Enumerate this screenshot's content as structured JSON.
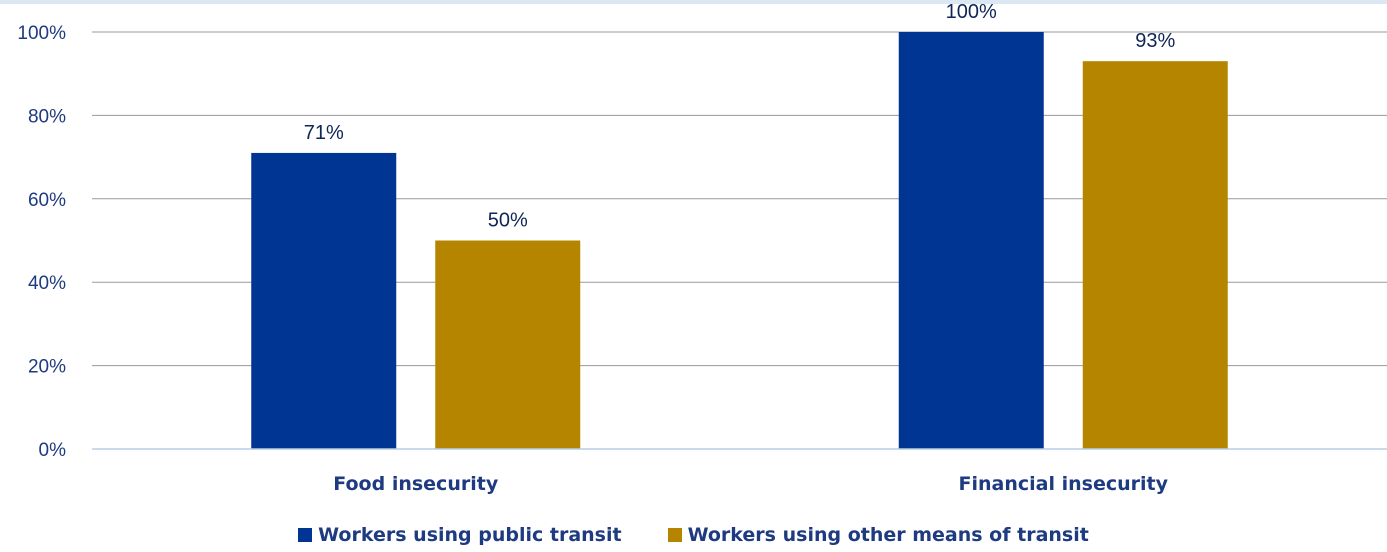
{
  "chart_data": {
    "type": "bar",
    "categories": [
      "Food insecurity",
      "Financial insecurity"
    ],
    "series": [
      {
        "name": "Workers using public transit",
        "values": [
          71,
          100
        ],
        "color": "#003594"
      },
      {
        "name": "Workers using other means of transit",
        "values": [
          50,
          93
        ],
        "color": "#b58500"
      }
    ],
    "data_labels": [
      [
        "71%",
        "100%"
      ],
      [
        "50%",
        "93%"
      ]
    ],
    "y_ticks": [
      0,
      20,
      40,
      60,
      80,
      100
    ],
    "y_tick_labels": [
      "0%",
      "20%",
      "40%",
      "60%",
      "80%",
      "100%"
    ],
    "ylim": [
      0,
      100
    ],
    "grid": true,
    "legend_position": "bottom",
    "colors": {
      "axis_text": "#1e3a80",
      "label_text": "#0f2557",
      "grid": "#9a9a9a",
      "axis_line": "#b8cde4"
    }
  }
}
